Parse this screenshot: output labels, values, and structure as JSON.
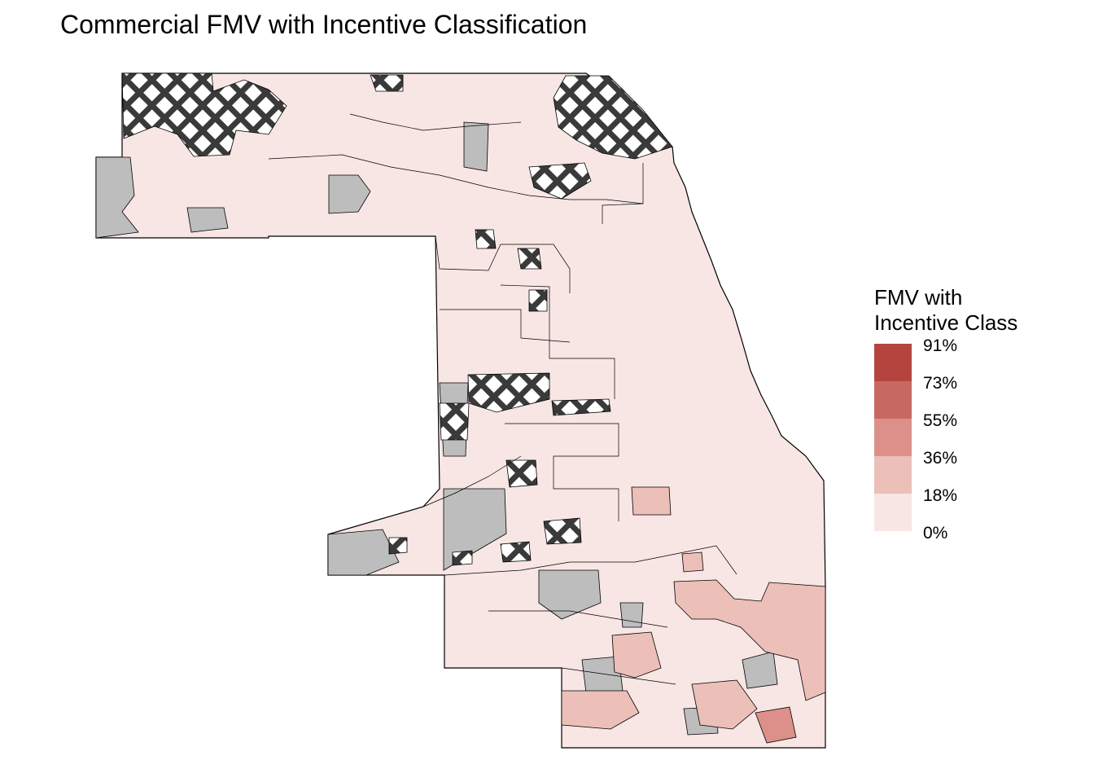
{
  "title": "Commercial FMV with Incentive Classification",
  "legend": {
    "title_line1": "FMV with",
    "title_line2": "Incentive Class",
    "bins": [
      {
        "label": "91%",
        "color": "#b5443e"
      },
      {
        "label": "73%",
        "color": "#c76961"
      },
      {
        "label": "55%",
        "color": "#dc9089"
      },
      {
        "label": "36%",
        "color": "#ecbfb9"
      },
      {
        "label": "18%",
        "color": "#f7e6e4"
      },
      {
        "label": "0%",
        "color": null
      }
    ]
  },
  "colors": {
    "no_data": "#bdbdbd",
    "base": "#f7e6e4",
    "hatch_light": "#ffffff",
    "hatch_dark": "#3a3a3a"
  }
}
